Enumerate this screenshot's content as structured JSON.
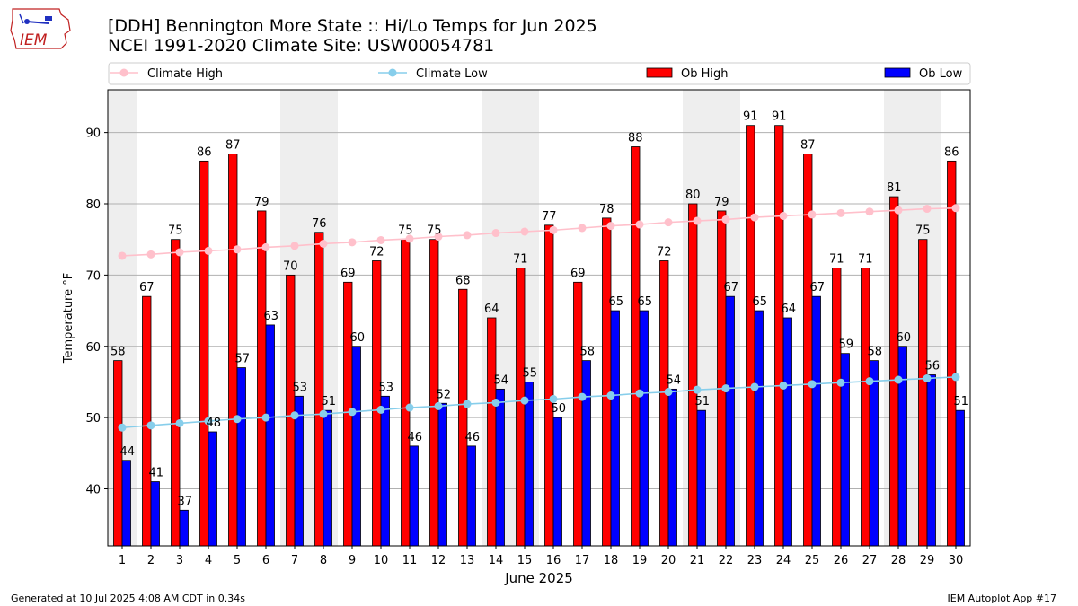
{
  "page": {
    "title_line1": "[DDH] Bennington More State :: Hi/Lo Temps for Jun 2025",
    "title_line2": "NCEI 1991-2020 Climate Site: USW00054781",
    "footer_left": "Generated at 10 Jul 2025 4:08 AM CDT in 0.34s",
    "footer_right": "IEM Autoplot App #17",
    "logo_text": "IEM"
  },
  "colors": {
    "ob_high": "#ff0000",
    "ob_low": "#0000ff",
    "climate_high": "#ffc0cb",
    "climate_low": "#87ceeb",
    "weekend_shade": "#eeeeee"
  },
  "chart_data": {
    "type": "bar",
    "title": "[DDH] Bennington More State :: Hi/Lo Temps for Jun 2025",
    "subtitle": "NCEI 1991-2020 Climate Site: USW00054781",
    "xlabel": "June 2025",
    "ylabel": "Temperature °F",
    "ylim": [
      32,
      96
    ],
    "yticks": [
      40,
      50,
      60,
      70,
      80,
      90
    ],
    "grid": "y",
    "legend_placement": "top",
    "categories": [
      "1",
      "2",
      "3",
      "4",
      "5",
      "6",
      "7",
      "8",
      "9",
      "10",
      "11",
      "12",
      "13",
      "14",
      "15",
      "16",
      "17",
      "18",
      "19",
      "20",
      "21",
      "22",
      "23",
      "24",
      "25",
      "26",
      "27",
      "28",
      "29",
      "30"
    ],
    "shaded_days": [
      1,
      7,
      8,
      14,
      15,
      21,
      22,
      28,
      29
    ],
    "series": [
      {
        "name": "Ob High",
        "kind": "bar",
        "color": "#ff0000",
        "values": [
          58,
          67,
          75,
          86,
          87,
          79,
          70,
          76,
          69,
          72,
          75,
          75,
          68,
          64,
          71,
          77,
          69,
          78,
          88,
          72,
          80,
          79,
          91,
          91,
          87,
          71,
          71,
          81,
          75,
          86
        ]
      },
      {
        "name": "Ob Low",
        "kind": "bar",
        "color": "#0000ff",
        "values": [
          44,
          41,
          37,
          48,
          57,
          63,
          53,
          51,
          60,
          53,
          46,
          52,
          46,
          54,
          55,
          50,
          58,
          65,
          65,
          54,
          51,
          67,
          65,
          64,
          67,
          59,
          58,
          60,
          56,
          51
        ]
      },
      {
        "name": "Climate High",
        "kind": "line",
        "color": "#ffc0cb",
        "values": [
          72.7,
          72.9,
          73.2,
          73.4,
          73.6,
          73.9,
          74.1,
          74.4,
          74.6,
          74.9,
          75.1,
          75.4,
          75.6,
          75.9,
          76.1,
          76.3,
          76.6,
          76.9,
          77.1,
          77.4,
          77.6,
          77.8,
          78.1,
          78.3,
          78.5,
          78.7,
          78.9,
          79.1,
          79.3,
          79.4
        ]
      },
      {
        "name": "Climate Low",
        "kind": "line",
        "color": "#87ceeb",
        "values": [
          48.6,
          48.9,
          49.2,
          49.5,
          49.8,
          50.0,
          50.3,
          50.5,
          50.8,
          51.1,
          51.4,
          51.6,
          51.9,
          52.1,
          52.4,
          52.6,
          52.9,
          53.1,
          53.4,
          53.6,
          53.9,
          54.1,
          54.3,
          54.5,
          54.7,
          54.9,
          55.1,
          55.3,
          55.5,
          55.7
        ]
      }
    ]
  }
}
